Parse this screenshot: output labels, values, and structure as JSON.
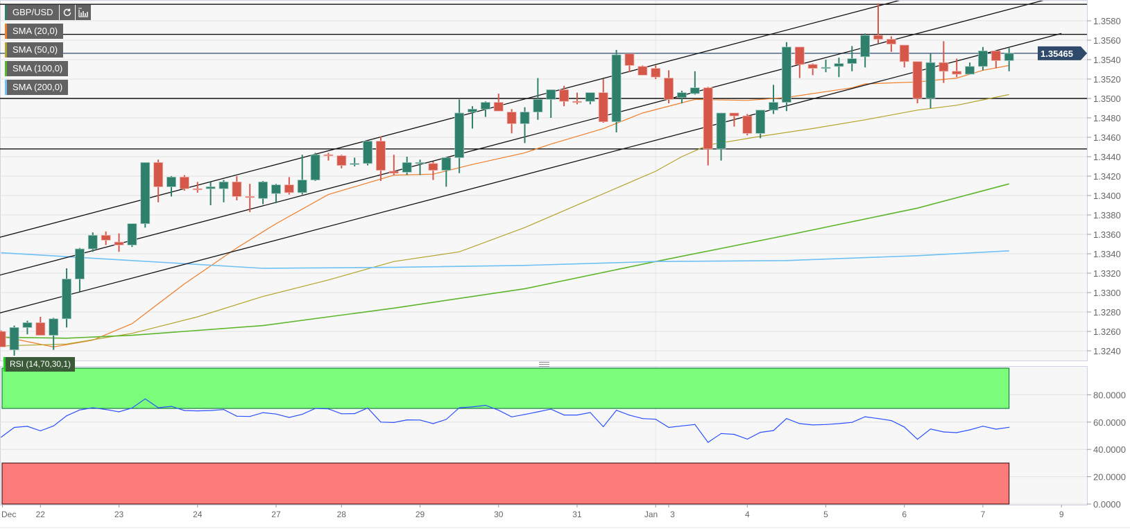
{
  "legend": {
    "symbol": "GBP/USD",
    "refresh_icon": "refresh-icon",
    "chart_type_icon": "bar-chart-icon",
    "indicators": [
      {
        "label": "SMA (20,0)",
        "color": "#f07d2a"
      },
      {
        "label": "SMA (50,0)",
        "color": "#b3a42c"
      },
      {
        "label": "SMA (100,0)",
        "color": "#5db52b"
      },
      {
        "label": "SMA (200,0)",
        "color": "#6ec0f5"
      }
    ],
    "rsi_label": "RSI (14,70,30,1)"
  },
  "colors": {
    "up": "#2f7f6d",
    "down": "#d5574a",
    "price_tag": "#2f4a6b",
    "rsi_line": "#2b50ff",
    "overbought": "#7bfc7b",
    "oversold": "#fc7b7b"
  },
  "chart_data": [
    {
      "type": "candlestick",
      "title": "GBP/USD",
      "current_price": "1.35465",
      "current_price_value": 1.35465,
      "ylim": [
        1.3222,
        1.3601
      ],
      "y_ticks": [
        "1.3580",
        "1.3560",
        "1.3540",
        "1.3520",
        "1.3500",
        "1.3480",
        "1.3460",
        "1.3440",
        "1.3420",
        "1.3400",
        "1.3380",
        "1.3360",
        "1.3340",
        "1.3320",
        "1.3300",
        "1.3280",
        "1.3260",
        "1.3240"
      ],
      "x_ticks": [
        {
          "label": "Dec",
          "index": 0.1
        },
        {
          "label": "22",
          "index": 3
        },
        {
          "label": "23",
          "index": 9
        },
        {
          "label": "24",
          "index": 15
        },
        {
          "label": "27",
          "index": 21
        },
        {
          "label": "28",
          "index": 26
        },
        {
          "label": "29",
          "index": 32
        },
        {
          "label": "30",
          "index": 38
        },
        {
          "label": "31",
          "index": 44
        },
        {
          "label": "Jan",
          "index": 50
        },
        {
          "label": "3",
          "index": 51
        },
        {
          "label": "4",
          "index": 57
        },
        {
          "label": "5",
          "index": 63
        },
        {
          "label": "6",
          "index": 69
        },
        {
          "label": "7",
          "index": 75
        },
        {
          "label": "9",
          "index": 81
        }
      ],
      "candles_ohlc": [
        [
          1.326,
          1.3261,
          1.3244,
          1.3244
        ],
        [
          1.3241,
          1.3266,
          1.3235,
          1.3264
        ],
        [
          1.3264,
          1.3271,
          1.3257,
          1.3269
        ],
        [
          1.3269,
          1.3275,
          1.3256,
          1.3256
        ],
        [
          1.3256,
          1.3274,
          1.3241,
          1.3273
        ],
        [
          1.3273,
          1.3325,
          1.3264,
          1.3314
        ],
        [
          1.3314,
          1.3346,
          1.3301,
          1.3345
        ],
        [
          1.3345,
          1.3362,
          1.3342,
          1.3359
        ],
        [
          1.3359,
          1.3363,
          1.3349,
          1.3354
        ],
        [
          1.3352,
          1.3361,
          1.3342,
          1.3349
        ],
        [
          1.3349,
          1.3371,
          1.3347,
          1.3371
        ],
        [
          1.3371,
          1.3434,
          1.3367,
          1.3434
        ],
        [
          1.3434,
          1.3437,
          1.3393,
          1.3409
        ],
        [
          1.3409,
          1.342,
          1.3399,
          1.3419
        ],
        [
          1.3419,
          1.3421,
          1.3405,
          1.3407
        ],
        [
          1.3407,
          1.3414,
          1.3403,
          1.3406
        ],
        [
          1.3407,
          1.3414,
          1.339,
          1.3409
        ],
        [
          1.3407,
          1.3416,
          1.3393,
          1.3414
        ],
        [
          1.3414,
          1.342,
          1.3395,
          1.3399
        ],
        [
          1.3399,
          1.3412,
          1.3383,
          1.3398
        ],
        [
          1.3397,
          1.3415,
          1.3391,
          1.3414
        ],
        [
          1.3402,
          1.3412,
          1.3392,
          1.3411
        ],
        [
          1.3411,
          1.3419,
          1.3401,
          1.3403
        ],
        [
          1.3403,
          1.3442,
          1.3401,
          1.3416
        ],
        [
          1.3416,
          1.3444,
          1.3415,
          1.3442
        ],
        [
          1.3442,
          1.3444,
          1.3436,
          1.3441
        ],
        [
          1.3441,
          1.3442,
          1.3428,
          1.3431
        ],
        [
          1.3432,
          1.3439,
          1.343,
          1.3433
        ],
        [
          1.3433,
          1.3456,
          1.3431,
          1.3456
        ],
        [
          1.3456,
          1.3461,
          1.3415,
          1.3426
        ],
        [
          1.3425,
          1.3442,
          1.3421,
          1.3423
        ],
        [
          1.3424,
          1.344,
          1.3421,
          1.3434
        ],
        [
          1.3433,
          1.3437,
          1.3421,
          1.3434
        ],
        [
          1.3433,
          1.3435,
          1.3416,
          1.3426
        ],
        [
          1.3426,
          1.3439,
          1.3409,
          1.3439
        ],
        [
          1.3439,
          1.3499,
          1.3423,
          1.3485
        ],
        [
          1.3486,
          1.3492,
          1.3469,
          1.3489
        ],
        [
          1.3489,
          1.3497,
          1.3481,
          1.3496
        ],
        [
          1.3496,
          1.3505,
          1.3487,
          1.3487
        ],
        [
          1.3486,
          1.3489,
          1.3464,
          1.3474
        ],
        [
          1.3474,
          1.3491,
          1.3454,
          1.3486
        ],
        [
          1.3486,
          1.3521,
          1.3478,
          1.3499
        ],
        [
          1.3499,
          1.3509,
          1.348,
          1.3509
        ],
        [
          1.3509,
          1.3513,
          1.3492,
          1.3497
        ],
        [
          1.3497,
          1.3506,
          1.3494,
          1.3496
        ],
        [
          1.3497,
          1.3506,
          1.3494,
          1.3506
        ],
        [
          1.3506,
          1.352,
          1.3475,
          1.3476
        ],
        [
          1.3476,
          1.355,
          1.3465,
          1.3545
        ],
        [
          1.3546,
          1.3546,
          1.3527,
          1.3534
        ],
        [
          1.3533,
          1.3534,
          1.3524,
          1.3524
        ],
        [
          1.3531,
          1.3534,
          1.352,
          1.3522
        ],
        [
          1.3521,
          1.3529,
          1.3495,
          1.3499
        ],
        [
          1.3501,
          1.3508,
          1.3495,
          1.3506
        ],
        [
          1.3505,
          1.3528,
          1.3504,
          1.3511
        ],
        [
          1.3511,
          1.3512,
          1.3431,
          1.3448
        ],
        [
          1.3448,
          1.3485,
          1.3436,
          1.3485
        ],
        [
          1.3485,
          1.3485,
          1.3471,
          1.3482
        ],
        [
          1.3482,
          1.3484,
          1.3462,
          1.3464
        ],
        [
          1.3464,
          1.3488,
          1.3459,
          1.3488
        ],
        [
          1.3488,
          1.3514,
          1.3484,
          1.3496
        ],
        [
          1.3496,
          1.3558,
          1.3487,
          1.3553
        ],
        [
          1.3553,
          1.3553,
          1.3521,
          1.3535
        ],
        [
          1.3535,
          1.3536,
          1.3524,
          1.3531
        ],
        [
          1.3531,
          1.354,
          1.3527,
          1.3532
        ],
        [
          1.3533,
          1.3542,
          1.3522,
          1.3536
        ],
        [
          1.3536,
          1.3554,
          1.3528,
          1.3541
        ],
        [
          1.3543,
          1.3567,
          1.3532,
          1.3565
        ],
        [
          1.3565,
          1.3598,
          1.3557,
          1.3561
        ],
        [
          1.3561,
          1.3564,
          1.3548,
          1.3556
        ],
        [
          1.3555,
          1.3555,
          1.3532,
          1.3538
        ],
        [
          1.3538,
          1.3538,
          1.3495,
          1.35
        ],
        [
          1.35,
          1.3546,
          1.349,
          1.3537
        ],
        [
          1.3537,
          1.3559,
          1.3516,
          1.3528
        ],
        [
          1.3528,
          1.3541,
          1.3522,
          1.3525
        ],
        [
          1.3525,
          1.3537,
          1.3525,
          1.3533
        ],
        [
          1.3533,
          1.3553,
          1.3529,
          1.3549
        ],
        [
          1.3549,
          1.3549,
          1.3531,
          1.3539
        ],
        [
          1.3539,
          1.3552,
          1.3528,
          1.35465
        ]
      ],
      "sma": [
        {
          "name": "SMA (20,0)",
          "points": [
            [
              0,
              1.3255
            ],
            [
              4,
              1.3244
            ],
            [
              7,
              1.3251
            ],
            [
              10,
              1.3268
            ],
            [
              14,
              1.3309
            ],
            [
              18,
              1.3346
            ],
            [
              21,
              1.3371
            ],
            [
              25,
              1.3401
            ],
            [
              27,
              1.3409
            ],
            [
              30,
              1.3421
            ],
            [
              33,
              1.3422
            ],
            [
              36,
              1.3432
            ],
            [
              40,
              1.3444
            ],
            [
              42,
              1.3453
            ],
            [
              46,
              1.3469
            ],
            [
              49,
              1.3485
            ],
            [
              53,
              1.3499
            ],
            [
              57,
              1.3498
            ],
            [
              60,
              1.3501
            ],
            [
              65,
              1.3511
            ],
            [
              66,
              1.3515
            ],
            [
              70,
              1.3517
            ],
            [
              73,
              1.3521
            ],
            [
              75,
              1.3529
            ],
            [
              77,
              1.3534
            ]
          ]
        },
        {
          "name": "SMA (50,0)",
          "points": [
            [
              0,
              1.3245
            ],
            [
              5,
              1.3247
            ],
            [
              10,
              1.3258
            ],
            [
              15,
              1.3275
            ],
            [
              20,
              1.3296
            ],
            [
              25,
              1.3313
            ],
            [
              30,
              1.3332
            ],
            [
              35,
              1.3342
            ],
            [
              40,
              1.3367
            ],
            [
              45,
              1.3396
            ],
            [
              50,
              1.3425
            ],
            [
              52,
              1.344
            ],
            [
              54,
              1.3452
            ],
            [
              58,
              1.3461
            ],
            [
              62,
              1.3469
            ],
            [
              66,
              1.3478
            ],
            [
              70,
              1.3488
            ],
            [
              73,
              1.3493
            ],
            [
              77,
              1.3504
            ]
          ]
        },
        {
          "name": "SMA (100,0)",
          "points": [
            [
              0,
              1.3254
            ],
            [
              5,
              1.3253
            ],
            [
              10,
              1.3256
            ],
            [
              20,
              1.3266
            ],
            [
              30,
              1.3284
            ],
            [
              40,
              1.3304
            ],
            [
              50,
              1.3332
            ],
            [
              60,
              1.3359
            ],
            [
              70,
              1.3387
            ],
            [
              77,
              1.3412
            ]
          ]
        },
        {
          "name": "SMA (200,0)",
          "points": [
            [
              0,
              1.3341
            ],
            [
              10,
              1.3333
            ],
            [
              20,
              1.3325
            ],
            [
              30,
              1.3326
            ],
            [
              40,
              1.3328
            ],
            [
              50,
              1.3332
            ],
            [
              60,
              1.3333
            ],
            [
              70,
              1.3338
            ],
            [
              77,
              1.3343
            ]
          ]
        }
      ],
      "trend_lines": [
        {
          "name": "channel-top",
          "from": [
            -0.1,
            1.3357
          ],
          "to": [
            81,
            1.3645
          ]
        },
        {
          "name": "channel-middle",
          "from": [
            -0.1,
            1.3318
          ],
          "to": [
            81,
            1.3606
          ]
        },
        {
          "name": "channel-bottom",
          "from": [
            -0.1,
            1.3279
          ],
          "to": [
            81,
            1.3567
          ]
        }
      ],
      "horizontal_levels": [
        1.3597,
        1.3566,
        1.35,
        1.3448
      ]
    },
    {
      "type": "line",
      "title": "RSI (14,70,30,1)",
      "ylim": [
        0,
        100
      ],
      "y_ticks": [
        "80.0000",
        "60.0000",
        "40.0000",
        "20.0000",
        "0.0000"
      ],
      "overbought": 70,
      "oversold": 30,
      "values": [
        49.0,
        56.1,
        56.9,
        53.6,
        57.2,
        64.6,
        68.9,
        70.5,
        69.2,
        67.5,
        70.3,
        77.0,
        70.5,
        71.5,
        68.5,
        68.2,
        68.5,
        69.2,
        64.3,
        64.1,
        66.9,
        65.9,
        63.4,
        65.7,
        70.0,
        69.7,
        66.1,
        66.2,
        70.3,
        60.0,
        59.7,
        61.6,
        61.5,
        58.9,
        62.0,
        70.5,
        71.1,
        72.3,
        68.7,
        63.8,
        65.6,
        67.5,
        69.5,
        65.2,
        65.2,
        67.0,
        56.6,
        68.7,
        65.1,
        62.6,
        62.1,
        56.1,
        57.2,
        58.2,
        45.2,
        51.6,
        51.0,
        47.5,
        52.5,
        53.8,
        62.6,
        58.9,
        57.9,
        58.2,
        58.9,
        59.8,
        63.9,
        62.6,
        61.1,
        56.4,
        47.4,
        54.9,
        52.8,
        52.3,
        54.3,
        57.0,
        54.8,
        56.2
      ]
    }
  ]
}
